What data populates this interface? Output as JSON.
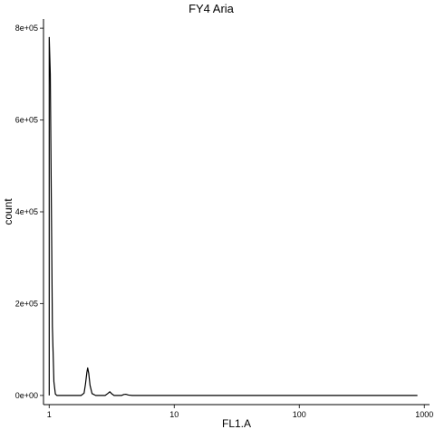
{
  "chart_data": {
    "type": "line",
    "title": "FY4 Aria",
    "xlabel": "FL1.A",
    "ylabel": "count",
    "x_scale": "log10",
    "xlim": [
      0.9,
      1100
    ],
    "ylim": [
      -20000,
      820000
    ],
    "x_ticks": [
      1,
      10,
      100,
      1000
    ],
    "x_tick_labels": [
      "1",
      "10",
      "100",
      "1000"
    ],
    "y_ticks": [
      0,
      200000,
      400000,
      600000,
      800000
    ],
    "y_tick_labels": [
      "0e+00",
      "2e+05",
      "4e+05",
      "6e+05",
      "8e+05"
    ],
    "grid": false,
    "legend": "none",
    "series": [
      {
        "line_color": "#000000",
        "points": [
          {
            "x": 1.0,
            "y": 0
          },
          {
            "x": 1.0,
            "y": 780000
          },
          {
            "x": 1.02,
            "y": 700000
          },
          {
            "x": 1.04,
            "y": 420000
          },
          {
            "x": 1.06,
            "y": 150000
          },
          {
            "x": 1.09,
            "y": 30000
          },
          {
            "x": 1.12,
            "y": 3000
          },
          {
            "x": 1.15,
            "y": 0
          },
          {
            "x": 1.4,
            "y": 0
          },
          {
            "x": 1.6,
            "y": 0
          },
          {
            "x": 1.8,
            "y": 0
          },
          {
            "x": 1.9,
            "y": 5000
          },
          {
            "x": 1.95,
            "y": 25000
          },
          {
            "x": 2.0,
            "y": 50000
          },
          {
            "x": 2.03,
            "y": 60000
          },
          {
            "x": 2.07,
            "y": 48000
          },
          {
            "x": 2.12,
            "y": 22000
          },
          {
            "x": 2.2,
            "y": 4000
          },
          {
            "x": 2.35,
            "y": 0
          },
          {
            "x": 2.8,
            "y": 0
          },
          {
            "x": 2.95,
            "y": 4500
          },
          {
            "x": 3.05,
            "y": 8000
          },
          {
            "x": 3.15,
            "y": 4000
          },
          {
            "x": 3.3,
            "y": 0
          },
          {
            "x": 3.8,
            "y": 0
          },
          {
            "x": 3.95,
            "y": 2000
          },
          {
            "x": 4.1,
            "y": 2500
          },
          {
            "x": 4.3,
            "y": 800
          },
          {
            "x": 4.6,
            "y": 0
          },
          {
            "x": 10,
            "y": 0
          },
          {
            "x": 100,
            "y": 0
          },
          {
            "x": 500,
            "y": 0
          },
          {
            "x": 880,
            "y": 0
          }
        ]
      }
    ]
  }
}
